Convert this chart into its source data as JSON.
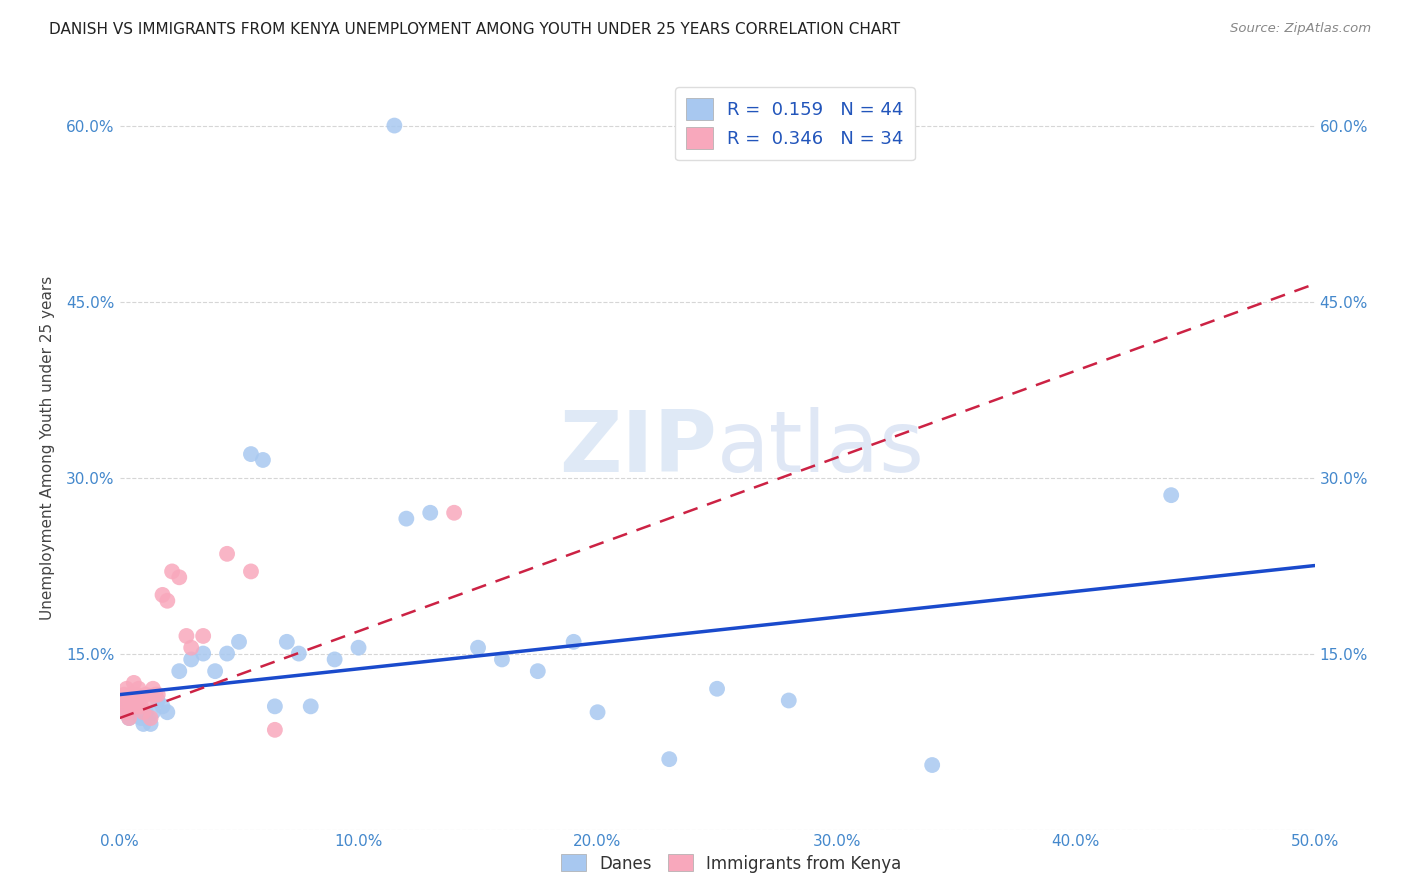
{
  "title": "DANISH VS IMMIGRANTS FROM KENYA UNEMPLOYMENT AMONG YOUTH UNDER 25 YEARS CORRELATION CHART",
  "source": "Source: ZipAtlas.com",
  "ylabel": "Unemployment Among Youth under 25 years",
  "xlim": [
    0.0,
    0.5
  ],
  "ylim": [
    -0.02,
    0.65
  ],
  "plot_ylim": [
    0.0,
    0.65
  ],
  "legend_r_danes": "R =  0.159",
  "legend_n_danes": "N = 44",
  "legend_r_kenya": "R =  0.346",
  "legend_n_kenya": "N = 34",
  "danes_color": "#a8c8f0",
  "kenya_color": "#f8a8bc",
  "danes_line_color": "#1a4acc",
  "kenya_line_color": "#cc2244",
  "watermark": "ZIPatlas",
  "danes_x": [
    0.001,
    0.002,
    0.003,
    0.004,
    0.005,
    0.006,
    0.007,
    0.008,
    0.009,
    0.01,
    0.011,
    0.012,
    0.013,
    0.014,
    0.016,
    0.018,
    0.02,
    0.025,
    0.03,
    0.035,
    0.04,
    0.045,
    0.05,
    0.055,
    0.06,
    0.065,
    0.07,
    0.075,
    0.08,
    0.09,
    0.1,
    0.115,
    0.12,
    0.13,
    0.15,
    0.16,
    0.175,
    0.19,
    0.2,
    0.23,
    0.25,
    0.28,
    0.34,
    0.44
  ],
  "danes_y": [
    0.11,
    0.105,
    0.1,
    0.095,
    0.105,
    0.1,
    0.105,
    0.1,
    0.095,
    0.09,
    0.1,
    0.095,
    0.09,
    0.1,
    0.11,
    0.105,
    0.1,
    0.135,
    0.145,
    0.15,
    0.135,
    0.15,
    0.16,
    0.32,
    0.315,
    0.105,
    0.16,
    0.15,
    0.105,
    0.145,
    0.155,
    0.6,
    0.265,
    0.27,
    0.155,
    0.145,
    0.135,
    0.16,
    0.1,
    0.06,
    0.12,
    0.11,
    0.055,
    0.285
  ],
  "kenya_x": [
    0.001,
    0.002,
    0.002,
    0.003,
    0.003,
    0.004,
    0.004,
    0.005,
    0.005,
    0.006,
    0.006,
    0.007,
    0.007,
    0.008,
    0.008,
    0.009,
    0.01,
    0.011,
    0.012,
    0.013,
    0.014,
    0.015,
    0.016,
    0.018,
    0.02,
    0.022,
    0.025,
    0.028,
    0.03,
    0.035,
    0.045,
    0.055,
    0.065,
    0.14
  ],
  "kenya_y": [
    0.11,
    0.115,
    0.105,
    0.12,
    0.1,
    0.11,
    0.095,
    0.115,
    0.105,
    0.11,
    0.125,
    0.115,
    0.105,
    0.12,
    0.11,
    0.105,
    0.1,
    0.115,
    0.11,
    0.095,
    0.12,
    0.115,
    0.115,
    0.2,
    0.195,
    0.22,
    0.215,
    0.165,
    0.155,
    0.165,
    0.235,
    0.22,
    0.085,
    0.27
  ],
  "danes_line_x0": 0.0,
  "danes_line_y0": 0.115,
  "danes_line_x1": 0.5,
  "danes_line_y1": 0.225,
  "kenya_line_x0": 0.0,
  "kenya_line_y0": 0.095,
  "kenya_line_x1": 0.5,
  "kenya_line_y1": 0.465
}
